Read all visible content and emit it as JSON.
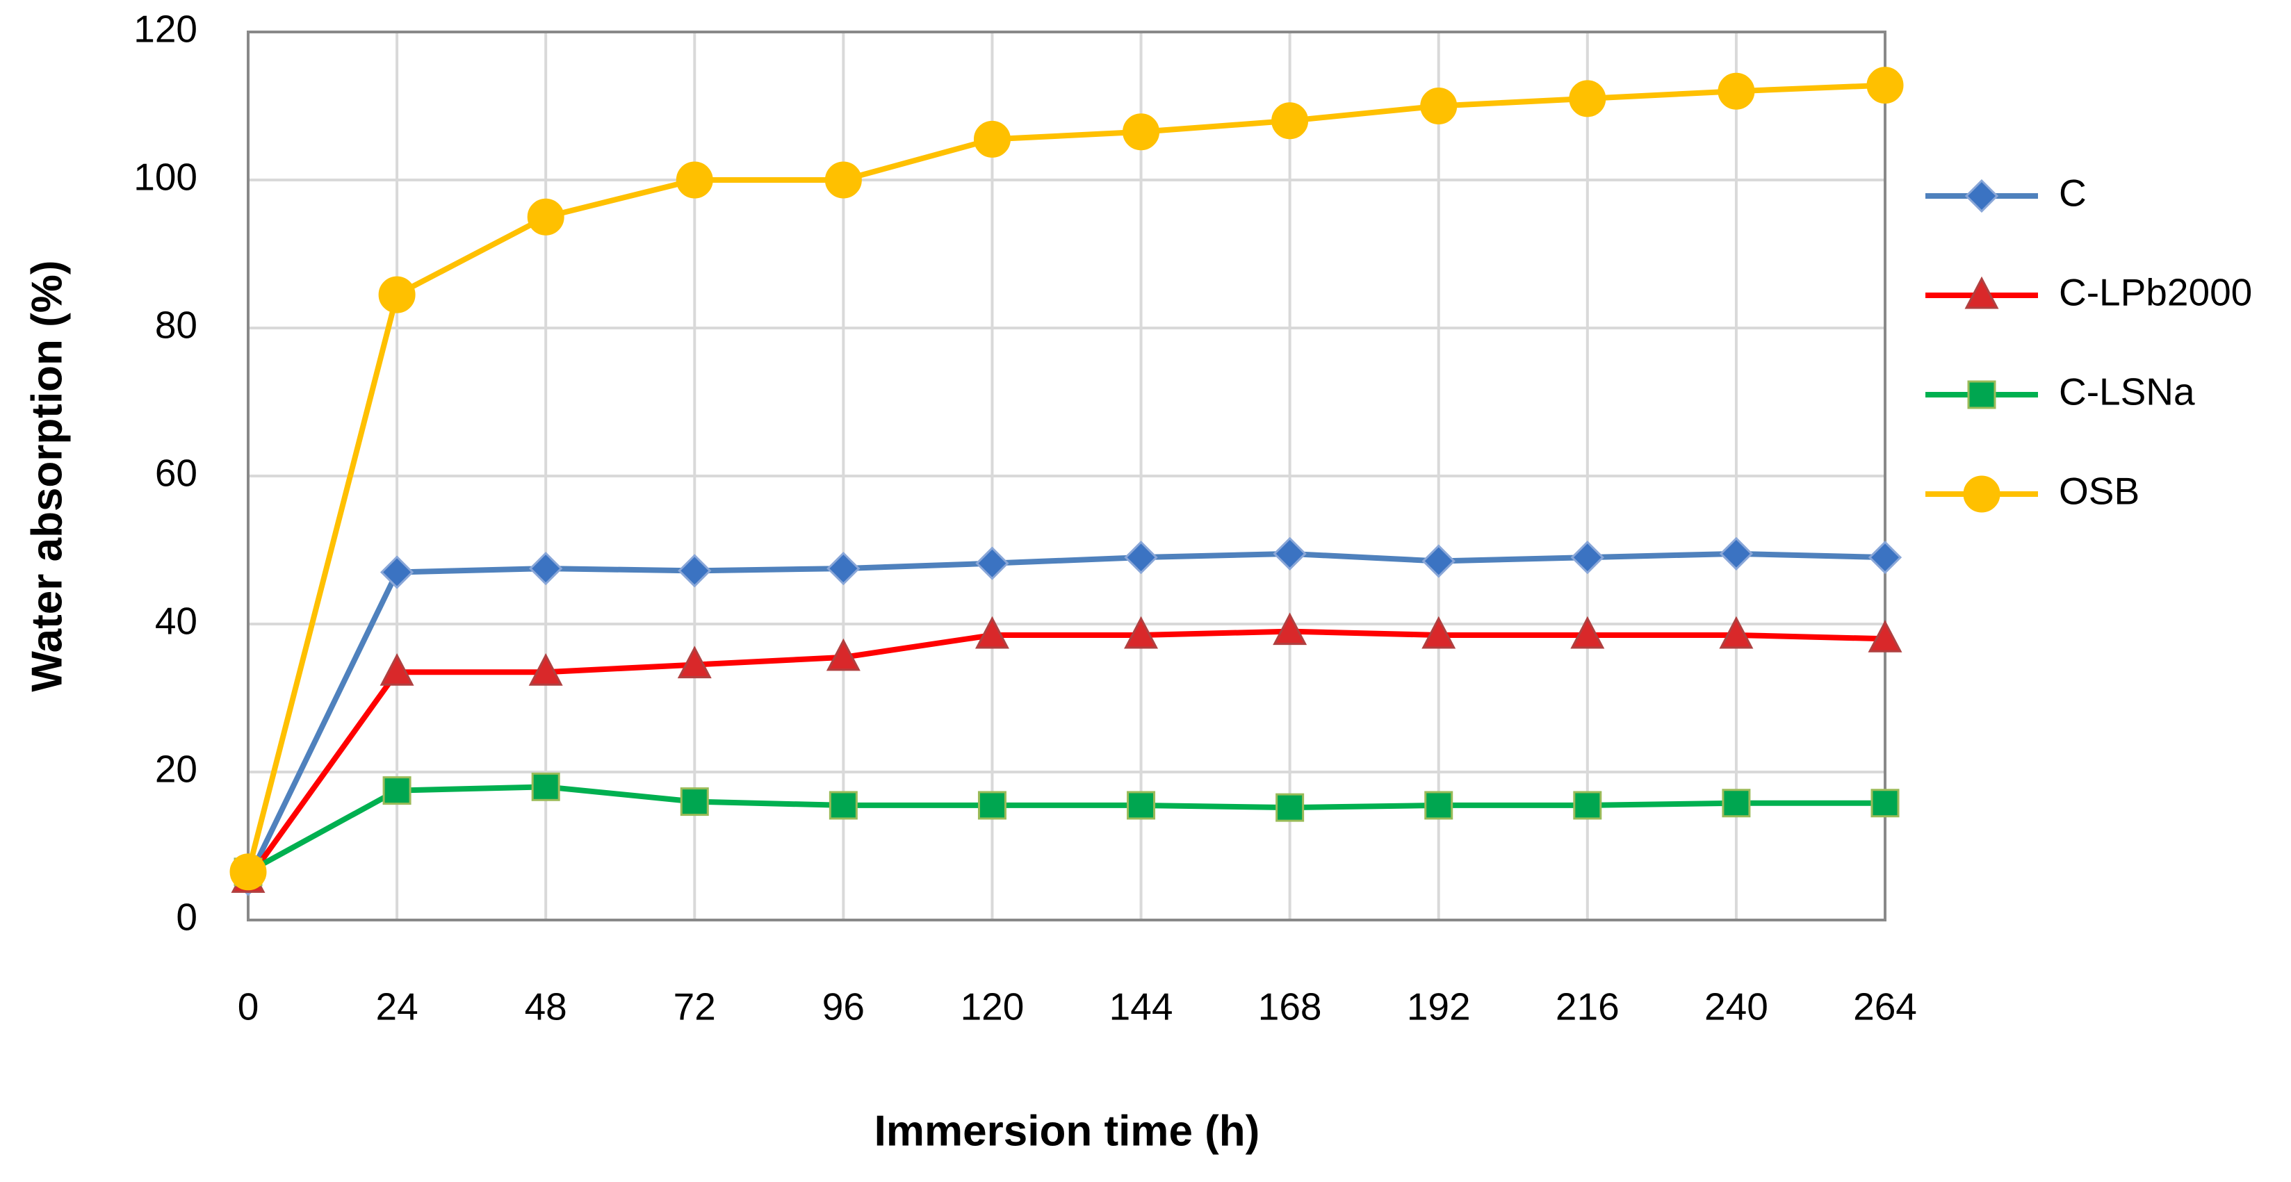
{
  "chart_data": {
    "type": "line",
    "x_label": "Immersion time (h)",
    "y_label": "Water absorption (%)",
    "x": [
      0,
      24,
      48,
      72,
      96,
      120,
      144,
      168,
      192,
      216,
      240,
      264
    ],
    "xlim": [
      0,
      264
    ],
    "xticks": [
      0,
      24,
      48,
      72,
      96,
      120,
      144,
      168,
      192,
      216,
      240,
      264
    ],
    "ylim": [
      0,
      120
    ],
    "yticks": [
      0,
      20,
      40,
      60,
      80,
      100,
      120
    ],
    "grid": true,
    "legend": "right",
    "series": [
      {
        "name": "C",
        "color": "#4f81bd",
        "marker": "diamond",
        "marker_color": "#3b73c2",
        "values": [
          5.5,
          47,
          47.5,
          47.2,
          47.5,
          48.2,
          49,
          49.5,
          48.5,
          49,
          49.5,
          49
        ]
      },
      {
        "name": "C-LPb2000",
        "color": "#ff0000",
        "marker": "triangle",
        "marker_color": "#d9282a",
        "values": [
          5.5,
          33.5,
          33.5,
          34.5,
          35.5,
          38.5,
          38.5,
          39,
          38.5,
          38.5,
          38.5,
          38
        ]
      },
      {
        "name": "C-LSNa",
        "color": "#00b050",
        "marker": "square",
        "marker_color": "#00a650",
        "values": [
          6.5,
          17.5,
          18,
          16,
          15.5,
          15.5,
          15.5,
          15.2,
          15.5,
          15.5,
          15.8,
          15.8
        ]
      },
      {
        "name": "OSB",
        "color": "#ffc000",
        "marker": "circle",
        "marker_color": "#ffc000",
        "values": [
          6.5,
          84.5,
          95,
          100,
          100,
          105.5,
          106.5,
          108,
          110,
          111,
          112,
          112.8
        ]
      }
    ]
  }
}
